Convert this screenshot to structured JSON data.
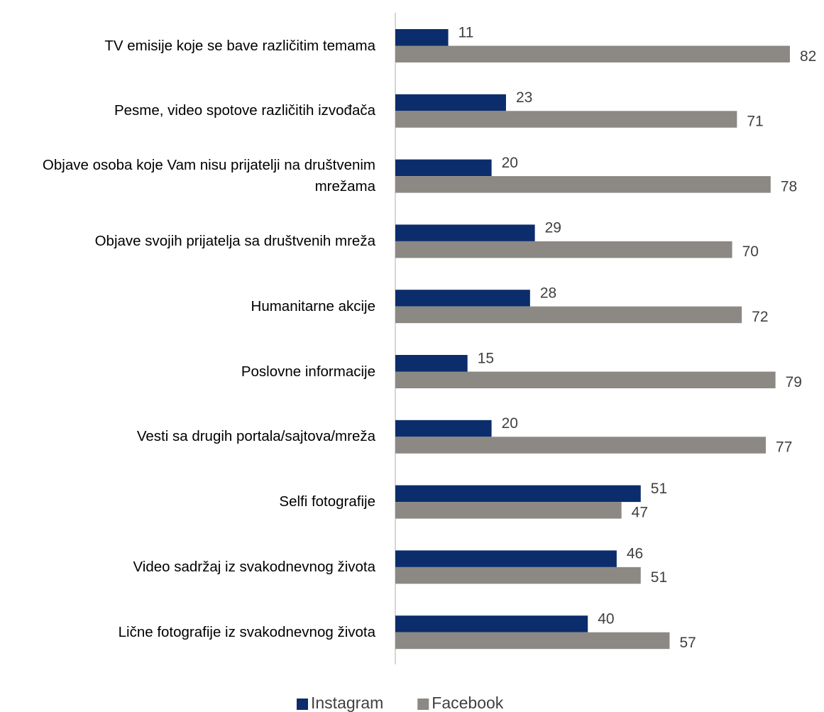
{
  "chart_data": {
    "type": "bar",
    "orientation": "horizontal",
    "categories": [
      "TV emisije koje se bave različitim temama",
      "Pesme, video spotove različitih izvođača",
      "Objave osoba koje Vam nisu prijatelji na društvenim mrežama",
      "Objave svojih prijatelja sa društvenih mreža",
      "Humanitarne akcije",
      "Poslovne informacije",
      "Vesti sa drugih portala/sajtova/mreža",
      "Selfi fotografije",
      "Video sadržaj iz svakodnevnog života",
      "Lične fotografije iz svakodnevnog života"
    ],
    "series": [
      {
        "name": "Instagram",
        "color": "#0b2d6b",
        "values": [
          11,
          23,
          20,
          29,
          28,
          15,
          20,
          51,
          46,
          40
        ]
      },
      {
        "name": "Facebook",
        "color": "#8c8984",
        "values": [
          82,
          71,
          78,
          70,
          72,
          79,
          77,
          47,
          51,
          57
        ]
      }
    ],
    "legend": "bottom"
  }
}
